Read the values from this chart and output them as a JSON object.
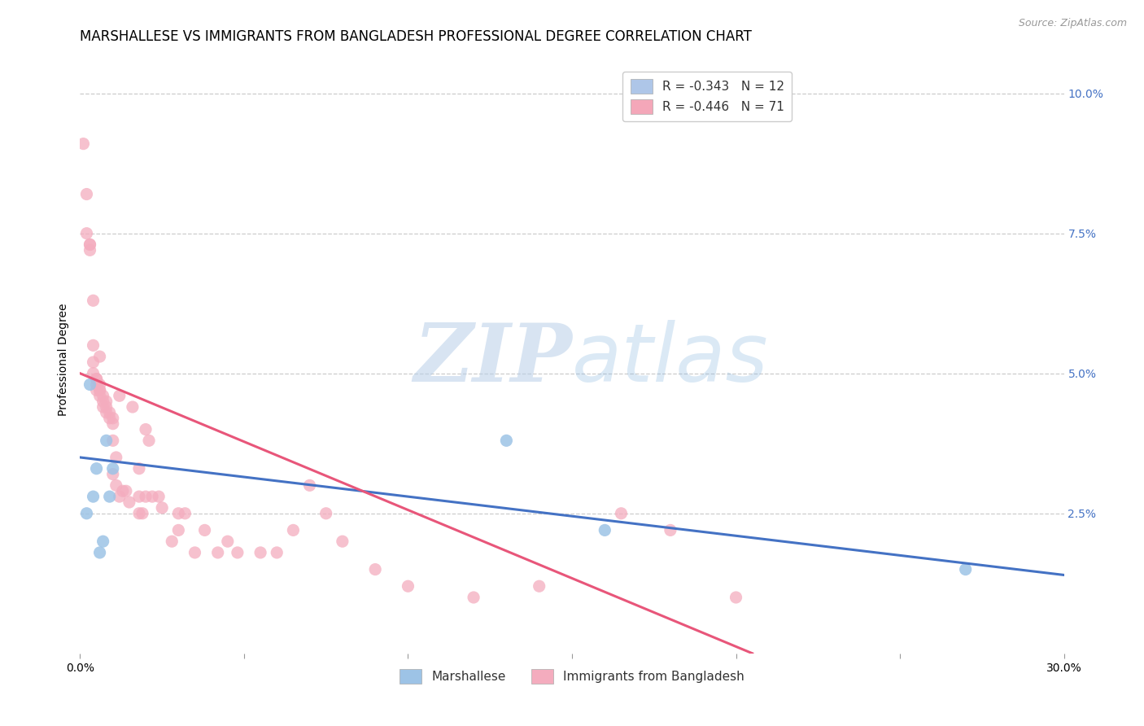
{
  "title": "MARSHALLESE VS IMMIGRANTS FROM BANGLADESH PROFESSIONAL DEGREE CORRELATION CHART",
  "source": "Source: ZipAtlas.com",
  "ylabel": "Professional Degree",
  "right_yticks": [
    "10.0%",
    "7.5%",
    "5.0%",
    "2.5%"
  ],
  "right_ytick_vals": [
    0.1,
    0.075,
    0.05,
    0.025
  ],
  "xlim": [
    0.0,
    0.3
  ],
  "ylim": [
    0.0,
    0.105
  ],
  "legend": [
    {
      "label": "R = -0.343   N = 12",
      "color": "#aec6e8"
    },
    {
      "label": "R = -0.446   N = 71",
      "color": "#f4a7b9"
    }
  ],
  "legend_labels_bottom": [
    "Marshallese",
    "Immigrants from Bangladesh"
  ],
  "blue_color": "#4472c4",
  "pink_color": "#e8567a",
  "blue_scatter": "#9dc3e6",
  "pink_scatter": "#f4acbe",
  "watermark_zip": "ZIP",
  "watermark_atlas": "atlas",
  "marshallese_x": [
    0.002,
    0.003,
    0.004,
    0.005,
    0.006,
    0.007,
    0.008,
    0.009,
    0.01,
    0.13,
    0.16,
    0.27
  ],
  "marshallese_y": [
    0.025,
    0.048,
    0.028,
    0.033,
    0.018,
    0.02,
    0.038,
    0.028,
    0.033,
    0.038,
    0.022,
    0.015
  ],
  "bangladesh_x": [
    0.001,
    0.002,
    0.002,
    0.003,
    0.003,
    0.003,
    0.004,
    0.004,
    0.004,
    0.004,
    0.005,
    0.005,
    0.005,
    0.005,
    0.006,
    0.006,
    0.006,
    0.006,
    0.006,
    0.007,
    0.007,
    0.007,
    0.008,
    0.008,
    0.008,
    0.009,
    0.009,
    0.01,
    0.01,
    0.01,
    0.01,
    0.011,
    0.011,
    0.012,
    0.012,
    0.013,
    0.014,
    0.015,
    0.016,
    0.018,
    0.018,
    0.018,
    0.019,
    0.02,
    0.02,
    0.021,
    0.022,
    0.024,
    0.025,
    0.028,
    0.03,
    0.03,
    0.032,
    0.035,
    0.038,
    0.042,
    0.045,
    0.048,
    0.055,
    0.06,
    0.065,
    0.07,
    0.075,
    0.08,
    0.09,
    0.1,
    0.12,
    0.14,
    0.165,
    0.18,
    0.2
  ],
  "bangladesh_y": [
    0.091,
    0.082,
    0.075,
    0.073,
    0.073,
    0.072,
    0.063,
    0.055,
    0.052,
    0.05,
    0.049,
    0.049,
    0.048,
    0.047,
    0.053,
    0.048,
    0.047,
    0.047,
    0.046,
    0.046,
    0.045,
    0.044,
    0.045,
    0.044,
    0.043,
    0.043,
    0.042,
    0.042,
    0.041,
    0.038,
    0.032,
    0.035,
    0.03,
    0.046,
    0.028,
    0.029,
    0.029,
    0.027,
    0.044,
    0.033,
    0.028,
    0.025,
    0.025,
    0.04,
    0.028,
    0.038,
    0.028,
    0.028,
    0.026,
    0.02,
    0.022,
    0.025,
    0.025,
    0.018,
    0.022,
    0.018,
    0.02,
    0.018,
    0.018,
    0.018,
    0.022,
    0.03,
    0.025,
    0.02,
    0.015,
    0.012,
    0.01,
    0.012,
    0.025,
    0.022,
    0.01
  ],
  "blue_line_x": [
    0.0,
    0.3
  ],
  "blue_line_y": [
    0.035,
    0.014
  ],
  "pink_line_x": [
    0.0,
    0.205
  ],
  "pink_line_y": [
    0.05,
    0.0
  ],
  "grid_color": "#cccccc",
  "background_color": "#ffffff",
  "title_fontsize": 12,
  "axis_fontsize": 10,
  "source_fontsize": 9
}
